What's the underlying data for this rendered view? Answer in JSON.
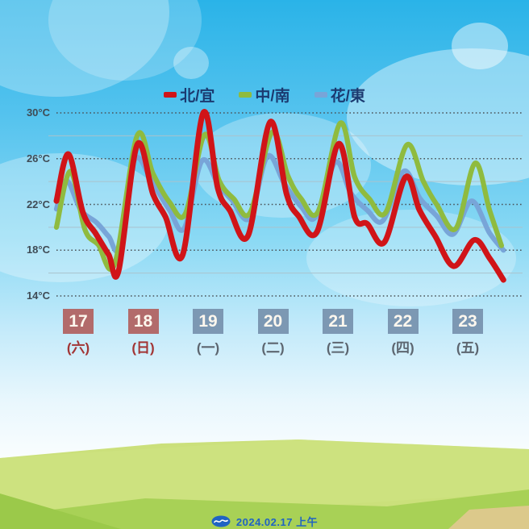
{
  "legend": {
    "items": [
      {
        "label": "北/宜",
        "color": "#d01418"
      },
      {
        "label": "中/南",
        "color": "#8fbb3f"
      },
      {
        "label": "花/東",
        "color": "#78a5d8"
      }
    ]
  },
  "y_axis": {
    "labels": [
      "30°C",
      "26°C",
      "22°C",
      "18°C",
      "14°C"
    ],
    "values": [
      30,
      26,
      22,
      18,
      14
    ],
    "minor_values": [
      28,
      24,
      20,
      16
    ]
  },
  "date_axis": {
    "days": [
      {
        "date": "17",
        "weekday": "(六)",
        "type": "weekend"
      },
      {
        "date": "18",
        "weekday": "(日)",
        "type": "weekend"
      },
      {
        "date": "19",
        "weekday": "(一)",
        "type": "weekday"
      },
      {
        "date": "20",
        "weekday": "(二)",
        "type": "weekday"
      },
      {
        "date": "21",
        "weekday": "(三)",
        "type": "weekday"
      },
      {
        "date": "22",
        "weekday": "(四)",
        "type": "weekday"
      },
      {
        "date": "23",
        "weekday": "(五)",
        "type": "weekday"
      }
    ]
  },
  "footer": {
    "logo": "weather-bureau-logo",
    "date_text": "2024.02.17",
    "period_text": "上午"
  },
  "colors": {
    "grid_dotted": "#4a5358",
    "grid_solid": "#aac2cc",
    "weekend_box": "#b26b6b",
    "weekday_box": "#7c98b3",
    "footer_blue": "#1f63c3"
  },
  "chart_data": {
    "type": "line",
    "title": "",
    "ylabel": "°C",
    "ylim": [
      14,
      30
    ],
    "x_unit": "days from Feb 17 (peaks ≈ 14:00, troughs ≈ 07:00)",
    "xlim_days": [
      0,
      7
    ],
    "grid": "dotted major every 4°C, solid minor every 2°C",
    "legend_position": "top-center",
    "series": [
      {
        "name": "北/宜",
        "color": "#d01418",
        "points": [
          [
            0.0,
            22.3
          ],
          [
            0.18,
            26.4
          ],
          [
            0.4,
            21.3
          ],
          [
            0.6,
            19.4
          ],
          [
            0.79,
            17.6
          ],
          [
            0.94,
            16.2
          ],
          [
            1.22,
            27.2
          ],
          [
            1.46,
            22.9
          ],
          [
            1.65,
            20.9
          ],
          [
            1.91,
            17.6
          ],
          [
            2.22,
            30.0
          ],
          [
            2.44,
            23.4
          ],
          [
            2.62,
            21.5
          ],
          [
            2.9,
            19.3
          ],
          [
            3.23,
            29.2
          ],
          [
            3.48,
            22.9
          ],
          [
            3.66,
            21.0
          ],
          [
            3.94,
            19.6
          ],
          [
            4.27,
            27.3
          ],
          [
            4.51,
            20.9
          ],
          [
            4.7,
            20.3
          ],
          [
            4.96,
            18.7
          ],
          [
            5.28,
            24.4
          ],
          [
            5.49,
            21.5
          ],
          [
            5.73,
            19.2
          ],
          [
            6.01,
            16.6
          ],
          [
            6.32,
            18.9
          ],
          [
            6.55,
            17.3
          ],
          [
            6.76,
            15.4
          ]
        ]
      },
      {
        "name": "中/南",
        "color": "#8fbb3f",
        "points": [
          [
            0.0,
            20.0
          ],
          [
            0.21,
            24.9
          ],
          [
            0.43,
            19.8
          ],
          [
            0.63,
            18.5
          ],
          [
            0.88,
            16.8
          ],
          [
            1.22,
            28.0
          ],
          [
            1.46,
            24.7
          ],
          [
            1.71,
            22.2
          ],
          [
            1.95,
            21.2
          ],
          [
            2.24,
            28.1
          ],
          [
            2.46,
            24.1
          ],
          [
            2.68,
            22.5
          ],
          [
            2.93,
            21.3
          ],
          [
            3.26,
            28.3
          ],
          [
            3.5,
            24.5
          ],
          [
            3.7,
            22.5
          ],
          [
            3.96,
            21.4
          ],
          [
            4.29,
            29.1
          ],
          [
            4.51,
            24.4
          ],
          [
            4.73,
            22.5
          ],
          [
            4.98,
            21.3
          ],
          [
            5.3,
            27.2
          ],
          [
            5.55,
            24.0
          ],
          [
            5.75,
            22.0
          ],
          [
            6.04,
            19.9
          ],
          [
            6.33,
            25.6
          ],
          [
            6.55,
            21.5
          ],
          [
            6.73,
            18.4
          ]
        ]
      },
      {
        "name": "花/東",
        "color": "#78a5d8",
        "points": [
          [
            0.0,
            21.6
          ],
          [
            0.15,
            24.1
          ],
          [
            0.37,
            21.5
          ],
          [
            0.61,
            20.4
          ],
          [
            0.79,
            19.2
          ],
          [
            0.95,
            18.3
          ],
          [
            1.18,
            25.9
          ],
          [
            1.46,
            23.8
          ],
          [
            1.71,
            21.5
          ],
          [
            1.93,
            19.9
          ],
          [
            2.2,
            25.8
          ],
          [
            2.45,
            23.7
          ],
          [
            2.65,
            22.4
          ],
          [
            2.92,
            20.8
          ],
          [
            3.19,
            26.2
          ],
          [
            3.45,
            23.8
          ],
          [
            3.7,
            21.8
          ],
          [
            3.92,
            20.9
          ],
          [
            4.22,
            25.7
          ],
          [
            4.45,
            23.0
          ],
          [
            4.7,
            21.5
          ],
          [
            4.94,
            20.6
          ],
          [
            5.25,
            24.9
          ],
          [
            5.5,
            22.5
          ],
          [
            5.75,
            21.0
          ],
          [
            6.0,
            19.4
          ],
          [
            6.28,
            22.3
          ],
          [
            6.55,
            19.5
          ],
          [
            6.76,
            18.0
          ]
        ]
      }
    ]
  }
}
